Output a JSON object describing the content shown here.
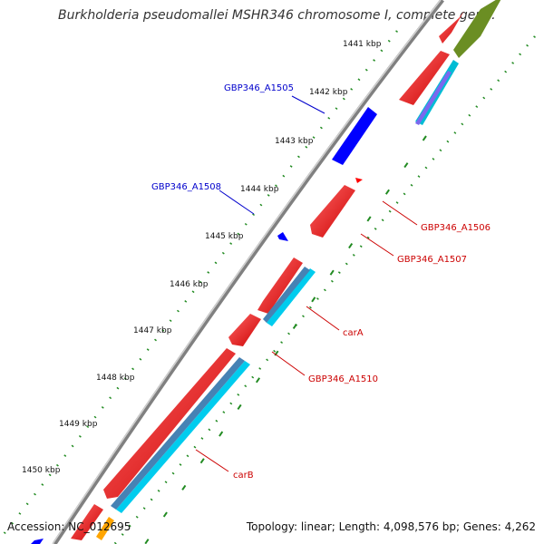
{
  "title": "Burkholderia pseudomallei MSHR346 chromosome I, complete gen...",
  "accession": "Accession: NC_012695",
  "summary": "Topology: linear; Length: 4,098,576 bp; Genes: 4,262",
  "ruler": [
    "1441 kbp",
    "1442 kbp",
    "1443 kbp",
    "1444 kbp",
    "1445 kbp",
    "1446 kbp",
    "1447 kbp",
    "1448 kbp",
    "1449 kbp",
    "1450 kbp"
  ],
  "labels": {
    "a1505": "GBP346_A1505",
    "a1508": "GBP346_A1508",
    "a1506": "GBP346_A1506",
    "a1507": "GBP346_A1507",
    "carA": "carA",
    "a1510": "GBP346_A1510",
    "carB": "carB"
  },
  "colors": {
    "reverse_label": "#0000cc",
    "forward_label": "#cc0000",
    "gene_red": "#ff0000",
    "gene_blue": "#0000ff",
    "cds_cyan": "#00ccee",
    "backbone": "#808080",
    "tick_green": "#228b22"
  }
}
